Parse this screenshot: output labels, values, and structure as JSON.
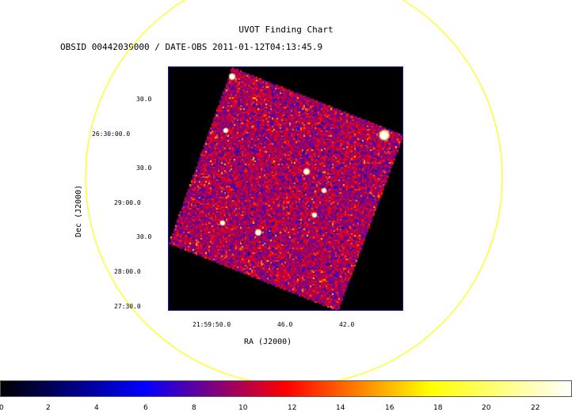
{
  "chart": {
    "title": "UVOT Finding Chart",
    "subtitle": "OBSID 00442039000 / DATE-OBS 2011-01-12T04:13:45.9",
    "xlabel": "RA (J2000)",
    "ylabel": "Dec (J2000)",
    "x_ticks": [
      "21:59:50.0",
      "46.0",
      "42.0"
    ],
    "y_ticks": [
      "30.0",
      "26:30:00.0",
      "30.0",
      "29:00.0",
      "30.0",
      "28:00.0",
      "27:30.0"
    ]
  },
  "colorbar": {
    "ticks": [
      "0",
      "2",
      "4",
      "6",
      "8",
      "10",
      "12",
      "14",
      "16",
      "18",
      "20",
      "22"
    ],
    "range": [
      0,
      23.5
    ],
    "colors": [
      "#000000",
      "#0000ff",
      "#ff0000",
      "#ffff00",
      "#ffffff"
    ]
  },
  "overlay_circle_color": "#ffff00"
}
